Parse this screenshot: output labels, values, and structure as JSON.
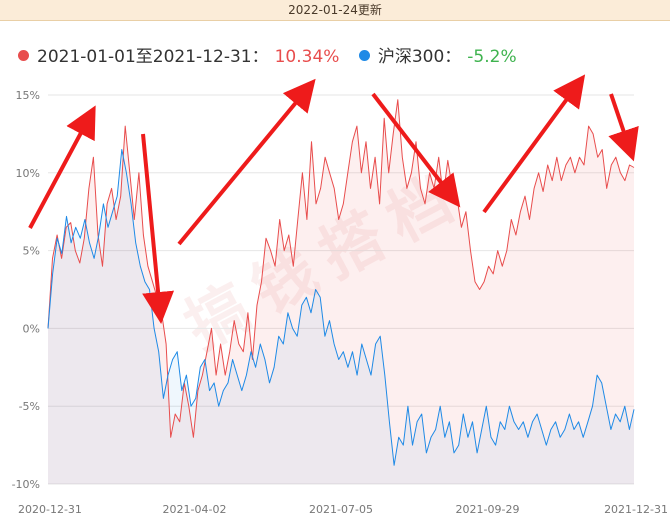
{
  "header": {
    "update_text": "2022-01-24更新"
  },
  "legend": {
    "items": [
      {
        "label": "2021-01-01至2021-12-31：",
        "value": "10.34%",
        "color": "#e84d4d"
      },
      {
        "label": "沪深300：",
        "value": "-5.2%",
        "color": "#1f8ae6",
        "value_color": "#3fb34f"
      }
    ]
  },
  "watermark": "搞钱搭档",
  "colors": {
    "fund": "#e84d4d",
    "index": "#1f8ae6",
    "arrow": "#ee1b1b"
  },
  "chart_data": {
    "type": "line",
    "y_ticks": [
      "15%",
      "10%",
      "5%",
      "0%",
      "-5%",
      "-10%"
    ],
    "y_tick_values": [
      15,
      10,
      5,
      0,
      -5,
      -10
    ],
    "ylim": [
      -10,
      15
    ],
    "x_ticks": [
      "2020-12-31",
      "2021-04-02",
      "2021-07-05",
      "2021-09-29",
      "2021-12-31"
    ],
    "grid": true,
    "series": [
      {
        "name": "2021-01-01至2021-12-31",
        "color": "#e84d4d",
        "values": [
          0,
          4.5,
          6,
          4.5,
          6.5,
          6.8,
          5,
          4.2,
          5.8,
          9,
          11,
          6,
          4,
          8,
          9,
          7,
          8.5,
          13,
          10,
          7,
          10,
          6,
          4,
          3,
          2,
          1,
          -1,
          -7,
          -5.5,
          -6,
          -3.5,
          -5,
          -7,
          -4,
          -3,
          -1.5,
          0,
          -3,
          -1,
          -3,
          -1.5,
          0.5,
          -1,
          -1.5,
          1,
          -2,
          1.5,
          3,
          5.8,
          5,
          4,
          7,
          5,
          6,
          4,
          7,
          10,
          7,
          12,
          8,
          9,
          11,
          10,
          9,
          7,
          8,
          10,
          12,
          13,
          10,
          12,
          9,
          11,
          8,
          13.5,
          10,
          12.5,
          14.7,
          11,
          9,
          10,
          12,
          9,
          8,
          10,
          9,
          11,
          8.5,
          10.8,
          9,
          8.5,
          6.5,
          7.5,
          5,
          3,
          2.5,
          3,
          4,
          3.5,
          5,
          4,
          5,
          7,
          6,
          7.5,
          8.5,
          7,
          9,
          10,
          8.8,
          10.5,
          9.5,
          11,
          9.5,
          10.5,
          11,
          10,
          11,
          10.5,
          13,
          12.5,
          11,
          11.5,
          9,
          10.5,
          11,
          10,
          9.5,
          10.5,
          10.34
        ]
      },
      {
        "name": "沪深300",
        "color": "#1f8ae6",
        "values": [
          0,
          3.5,
          5.8,
          4.8,
          7.2,
          5.5,
          6.5,
          5.8,
          7,
          5.5,
          4.5,
          6,
          8,
          6.5,
          7.5,
          8.5,
          11.5,
          10,
          8,
          5.5,
          4,
          3,
          2.5,
          0,
          -1.5,
          -4.5,
          -3,
          -2,
          -1.5,
          -4,
          -3,
          -5,
          -4.5,
          -2.5,
          -2,
          -4,
          -3.5,
          -5,
          -4,
          -3.5,
          -2,
          -3,
          -4,
          -3,
          -1.5,
          -2.5,
          -1,
          -2,
          -3.5,
          -2.5,
          -0.5,
          -1,
          1,
          0,
          -0.5,
          1.5,
          2,
          1,
          2.5,
          2,
          -0.5,
          0.5,
          -1,
          -2,
          -1.5,
          -2.5,
          -1.5,
          -3,
          -1,
          -2,
          -3,
          -1,
          -0.5,
          -3,
          -6,
          -8.8,
          -7,
          -7.5,
          -5,
          -7.5,
          -6,
          -5.5,
          -8,
          -7,
          -6.5,
          -5,
          -7,
          -6,
          -8,
          -7.5,
          -5.5,
          -7,
          -6,
          -8,
          -6.5,
          -5,
          -7,
          -7.5,
          -6,
          -6.5,
          -5,
          -6,
          -6.5,
          -6,
          -7,
          -6,
          -5.5,
          -6.5,
          -7.5,
          -6.5,
          -6,
          -7,
          -6.5,
          -5.5,
          -6.5,
          -6,
          -7,
          -6,
          -5,
          -3,
          -3.5,
          -5,
          -6.5,
          -5.5,
          -6,
          -5,
          -6.5,
          -5.2
        ]
      }
    ]
  }
}
